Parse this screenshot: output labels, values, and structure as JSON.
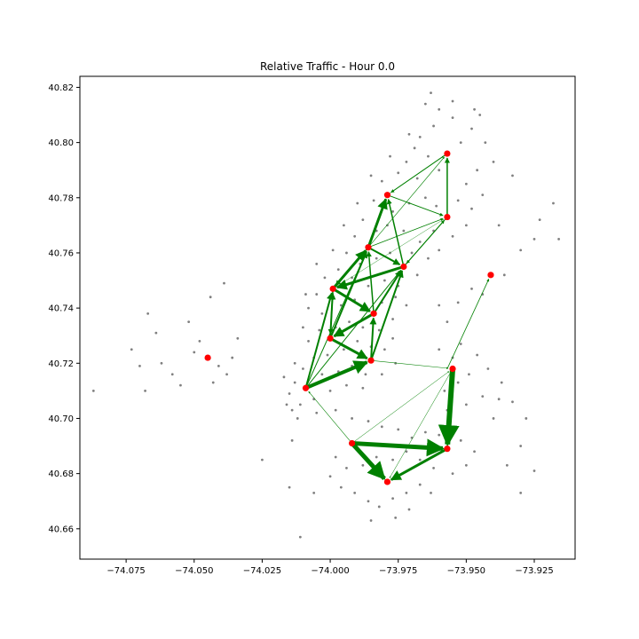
{
  "chart_data": {
    "type": "scatter",
    "title": "Relative Traffic - Hour 0.0",
    "xlabel": "",
    "ylabel": "",
    "xlim": [
      -74.092,
      -73.91
    ],
    "ylim": [
      40.649,
      40.824
    ],
    "grid": false,
    "x_ticks": [
      -74.075,
      -74.05,
      -74.025,
      -74.0,
      -73.975,
      -73.95,
      -73.925
    ],
    "x_tick_labels": [
      "−74.075",
      "−74.050",
      "−74.025",
      "−74.000",
      "−73.975",
      "−73.950",
      "−73.925"
    ],
    "y_ticks": [
      40.66,
      40.68,
      40.7,
      40.72,
      40.74,
      40.76,
      40.78,
      40.8,
      40.82
    ],
    "y_tick_labels": [
      "40.66",
      "40.68",
      "40.70",
      "40.72",
      "40.74",
      "40.76",
      "40.78",
      "40.80",
      "40.82"
    ],
    "colors": {
      "stations": "#808080",
      "hubs": "#ff0000",
      "flows": "#008000"
    },
    "hubs": [
      {
        "x": -73.957,
        "y": 40.796
      },
      {
        "x": -73.979,
        "y": 40.781
      },
      {
        "x": -73.957,
        "y": 40.773
      },
      {
        "x": -73.986,
        "y": 40.762
      },
      {
        "x": -73.973,
        "y": 40.755
      },
      {
        "x": -73.999,
        "y": 40.747
      },
      {
        "x": -73.984,
        "y": 40.738
      },
      {
        "x": -74.0,
        "y": 40.729
      },
      {
        "x": -73.985,
        "y": 40.721
      },
      {
        "x": -74.009,
        "y": 40.711
      },
      {
        "x": -73.955,
        "y": 40.718
      },
      {
        "x": -73.941,
        "y": 40.752
      },
      {
        "x": -74.045,
        "y": 40.722
      },
      {
        "x": -73.992,
        "y": 40.691
      },
      {
        "x": -73.957,
        "y": 40.689
      },
      {
        "x": -73.979,
        "y": 40.677
      }
    ],
    "flows": [
      {
        "from": [
          -73.992,
          40.691
        ],
        "to": [
          -73.957,
          40.689
        ],
        "weight": 5
      },
      {
        "from": [
          -73.955,
          40.718
        ],
        "to": [
          -73.957,
          40.689
        ],
        "weight": 6
      },
      {
        "from": [
          -73.992,
          40.691
        ],
        "to": [
          -73.979,
          40.677
        ],
        "weight": 5
      },
      {
        "from": [
          -73.957,
          40.689
        ],
        "to": [
          -73.979,
          40.677
        ],
        "weight": 3
      },
      {
        "from": [
          -74.009,
          40.711
        ],
        "to": [
          -73.985,
          40.721
        ],
        "weight": 4
      },
      {
        "from": [
          -74.0,
          40.729
        ],
        "to": [
          -73.985,
          40.721
        ],
        "weight": 3
      },
      {
        "from": [
          -73.999,
          40.747
        ],
        "to": [
          -73.984,
          40.738
        ],
        "weight": 3
      },
      {
        "from": [
          -73.973,
          40.755
        ],
        "to": [
          -73.999,
          40.747
        ],
        "weight": 3
      },
      {
        "from": [
          -73.999,
          40.747
        ],
        "to": [
          -73.986,
          40.762
        ],
        "weight": 3
      },
      {
        "from": [
          -73.986,
          40.762
        ],
        "to": [
          -73.979,
          40.781
        ],
        "weight": 3
      },
      {
        "from": [
          -73.984,
          40.738
        ],
        "to": [
          -74.0,
          40.729
        ],
        "weight": 3
      },
      {
        "from": [
          -74.009,
          40.711
        ],
        "to": [
          -73.999,
          40.747
        ],
        "weight": 2
      },
      {
        "from": [
          -74.0,
          40.729
        ],
        "to": [
          -73.999,
          40.747
        ],
        "weight": 2
      },
      {
        "from": [
          -73.985,
          40.721
        ],
        "to": [
          -73.984,
          40.738
        ],
        "weight": 2
      },
      {
        "from": [
          -73.985,
          40.721
        ],
        "to": [
          -73.973,
          40.755
        ],
        "weight": 2
      },
      {
        "from": [
          -73.984,
          40.738
        ],
        "to": [
          -73.973,
          40.755
        ],
        "weight": 2
      },
      {
        "from": [
          -74.0,
          40.729
        ],
        "to": [
          -73.986,
          40.762
        ],
        "weight": 2
      },
      {
        "from": [
          -73.986,
          40.762
        ],
        "to": [
          -73.973,
          40.755
        ],
        "weight": 2
      },
      {
        "from": [
          -73.973,
          40.755
        ],
        "to": [
          -73.979,
          40.781
        ],
        "weight": 1.5
      },
      {
        "from": [
          -73.986,
          40.762
        ],
        "to": [
          -73.999,
          40.747
        ],
        "weight": 1.5
      },
      {
        "from": [
          -73.957,
          40.773
        ],
        "to": [
          -73.957,
          40.796
        ],
        "weight": 1.5
      },
      {
        "from": [
          -73.979,
          40.781
        ],
        "to": [
          -73.957,
          40.773
        ],
        "weight": 1
      },
      {
        "from": [
          -73.957,
          40.796
        ],
        "to": [
          -73.979,
          40.781
        ],
        "weight": 1
      },
      {
        "from": [
          -73.957,
          40.773
        ],
        "to": [
          -73.973,
          40.755
        ],
        "weight": 1
      },
      {
        "from": [
          -73.973,
          40.755
        ],
        "to": [
          -73.957,
          40.773
        ],
        "weight": 1
      },
      {
        "from": [
          -73.986,
          40.762
        ],
        "to": [
          -73.957,
          40.773
        ],
        "weight": 0.8
      },
      {
        "from": [
          -73.957,
          40.718
        ],
        "to": [
          -73.941,
          40.752
        ],
        "weight": 0.8
      },
      {
        "from": [
          -73.985,
          40.721
        ],
        "to": [
          -73.955,
          40.718
        ],
        "weight": 0.6
      },
      {
        "from": [
          -73.992,
          40.691
        ],
        "to": [
          -74.009,
          40.711
        ],
        "weight": 0.6
      },
      {
        "from": [
          -73.992,
          40.691
        ],
        "to": [
          -73.955,
          40.718
        ],
        "weight": 0.5
      },
      {
        "from": [
          -73.955,
          40.718
        ],
        "to": [
          -73.979,
          40.677
        ],
        "weight": 0.5
      },
      {
        "from": [
          -74.009,
          40.711
        ],
        "to": [
          -73.986,
          40.762
        ],
        "weight": 1
      },
      {
        "from": [
          -74.009,
          40.711
        ],
        "to": [
          -73.973,
          40.755
        ],
        "weight": 1
      },
      {
        "from": [
          -73.984,
          40.738
        ],
        "to": [
          -73.986,
          40.762
        ],
        "weight": 1.5
      },
      {
        "from": [
          -73.999,
          40.747
        ],
        "to": [
          -74.0,
          40.729
        ],
        "weight": 1.5
      },
      {
        "from": [
          -73.986,
          40.762
        ],
        "to": [
          -73.957,
          40.796
        ],
        "weight": 0.6
      },
      {
        "from": [
          -73.979,
          40.781
        ],
        "to": [
          -73.957,
          40.796
        ],
        "weight": 0.5
      },
      {
        "from": [
          -73.999,
          40.747
        ],
        "to": [
          -73.957,
          40.773
        ],
        "weight": 0.4
      }
    ],
    "stations": [
      [
        -74.045,
        40.722
      ],
      [
        -74.048,
        40.728
      ],
      [
        -74.05,
        40.724
      ],
      [
        -74.041,
        40.719
      ],
      [
        -74.038,
        40.716
      ],
      [
        -74.036,
        40.722
      ],
      [
        -74.043,
        40.713
      ],
      [
        -74.034,
        40.729
      ],
      [
        -74.052,
        40.735
      ],
      [
        -74.044,
        40.744
      ],
      [
        -74.039,
        40.749
      ],
      [
        -74.067,
        40.738
      ],
      [
        -74.064,
        40.731
      ],
      [
        -74.062,
        40.72
      ],
      [
        -74.07,
        40.719
      ],
      [
        -74.073,
        40.725
      ],
      [
        -74.055,
        40.712
      ],
      [
        -74.087,
        40.71
      ],
      [
        -74.068,
        40.71
      ],
      [
        -74.058,
        40.716
      ],
      [
        -74.025,
        40.685
      ],
      [
        -74.014,
        40.692
      ],
      [
        -74.015,
        40.675
      ],
      [
        -74.006,
        40.673
      ],
      [
        -74.011,
        40.657
      ],
      [
        -73.965,
        40.814
      ],
      [
        -73.96,
        40.812
      ],
      [
        -73.955,
        40.809
      ],
      [
        -73.948,
        40.805
      ],
      [
        -73.952,
        40.8
      ],
      [
        -73.962,
        40.806
      ],
      [
        -73.967,
        40.802
      ],
      [
        -73.945,
        40.81
      ],
      [
        -73.943,
        40.8
      ],
      [
        -73.94,
        40.793
      ],
      [
        -73.946,
        40.79
      ],
      [
        -73.95,
        40.785
      ],
      [
        -73.96,
        40.79
      ],
      [
        -73.964,
        40.795
      ],
      [
        -73.969,
        40.798
      ],
      [
        -73.972,
        40.793
      ],
      [
        -73.968,
        40.787
      ],
      [
        -73.975,
        40.789
      ],
      [
        -73.981,
        40.786
      ],
      [
        -73.984,
        40.779
      ],
      [
        -73.977,
        40.775
      ],
      [
        -73.971,
        40.778
      ],
      [
        -73.965,
        40.78
      ],
      [
        -73.961,
        40.777
      ],
      [
        -73.953,
        40.779
      ],
      [
        -73.948,
        40.776
      ],
      [
        -73.944,
        40.781
      ],
      [
        -73.95,
        40.77
      ],
      [
        -73.955,
        40.766
      ],
      [
        -73.962,
        40.768
      ],
      [
        -73.967,
        40.764
      ],
      [
        -73.973,
        40.768
      ],
      [
        -73.979,
        40.77
      ],
      [
        -73.983,
        40.768
      ],
      [
        -73.988,
        40.772
      ],
      [
        -73.991,
        40.766
      ],
      [
        -73.994,
        40.76
      ],
      [
        -73.989,
        40.756
      ],
      [
        -73.983,
        40.758
      ],
      [
        -73.978,
        40.76
      ],
      [
        -73.97,
        40.76
      ],
      [
        -73.964,
        40.758
      ],
      [
        -73.96,
        40.761
      ],
      [
        -73.968,
        40.752
      ],
      [
        -73.975,
        40.748
      ],
      [
        -73.98,
        40.75
      ],
      [
        -73.986,
        40.748
      ],
      [
        -73.992,
        40.751
      ],
      [
        -73.997,
        40.754
      ],
      [
        -74.002,
        40.751
      ],
      [
        -74.005,
        40.745
      ],
      [
        -74.008,
        40.74
      ],
      [
        -74.003,
        40.738
      ],
      [
        -73.996,
        40.741
      ],
      [
        -73.991,
        40.743
      ],
      [
        -73.987,
        40.74
      ],
      [
        -73.981,
        40.742
      ],
      [
        -73.976,
        40.744
      ],
      [
        -73.972,
        40.741
      ],
      [
        -73.977,
        40.736
      ],
      [
        -73.982,
        40.732
      ],
      [
        -73.988,
        40.733
      ],
      [
        -73.993,
        40.735
      ],
      [
        -73.998,
        40.733
      ],
      [
        -74.004,
        40.732
      ],
      [
        -74.008,
        40.728
      ],
      [
        -74.006,
        40.722
      ],
      [
        -74.001,
        40.723
      ],
      [
        -73.995,
        40.725
      ],
      [
        -73.99,
        40.728
      ],
      [
        -73.985,
        40.726
      ],
      [
        -73.98,
        40.725
      ],
      [
        -73.977,
        40.729
      ],
      [
        -73.976,
        40.72
      ],
      [
        -73.981,
        40.716
      ],
      [
        -73.987,
        40.716
      ],
      [
        -73.992,
        40.719
      ],
      [
        -73.997,
        40.717
      ],
      [
        -74.003,
        40.716
      ],
      [
        -74.01,
        40.718
      ],
      [
        -74.013,
        40.713
      ],
      [
        -74.015,
        40.709
      ],
      [
        -74.011,
        40.705
      ],
      [
        -74.006,
        40.707
      ],
      [
        -74.0,
        40.71
      ],
      [
        -73.994,
        40.712
      ],
      [
        -73.988,
        40.711
      ],
      [
        -74.014,
        40.703
      ],
      [
        -74.012,
        40.7
      ],
      [
        -74.005,
        40.702
      ],
      [
        -73.998,
        40.703
      ],
      [
        -73.992,
        40.7
      ],
      [
        -73.986,
        40.699
      ],
      [
        -73.981,
        40.697
      ],
      [
        -73.975,
        40.696
      ],
      [
        -73.97,
        40.693
      ],
      [
        -73.965,
        40.695
      ],
      [
        -73.96,
        40.694
      ],
      [
        -73.952,
        40.692
      ],
      [
        -73.947,
        40.688
      ],
      [
        -73.95,
        40.683
      ],
      [
        -73.955,
        40.68
      ],
      [
        -73.962,
        40.682
      ],
      [
        -73.967,
        40.685
      ],
      [
        -73.972,
        40.688
      ],
      [
        -73.977,
        40.685
      ],
      [
        -73.983,
        40.686
      ],
      [
        -73.988,
        40.683
      ],
      [
        -73.994,
        40.682
      ],
      [
        -73.998,
        40.686
      ],
      [
        -74.0,
        40.679
      ],
      [
        -73.996,
        40.675
      ],
      [
        -73.991,
        40.673
      ],
      [
        -73.986,
        40.67
      ],
      [
        -73.982,
        40.668
      ],
      [
        -73.977,
        40.671
      ],
      [
        -73.972,
        40.673
      ],
      [
        -73.967,
        40.676
      ],
      [
        -73.963,
        40.673
      ],
      [
        -73.985,
        40.663
      ],
      [
        -73.976,
        40.664
      ],
      [
        -73.971,
        40.667
      ],
      [
        -73.958,
        40.71
      ],
      [
        -73.953,
        40.713
      ],
      [
        -73.949,
        40.716
      ],
      [
        -73.955,
        40.722
      ],
      [
        -73.96,
        40.725
      ],
      [
        -73.952,
        40.727
      ],
      [
        -73.946,
        40.723
      ],
      [
        -73.942,
        40.718
      ],
      [
        -73.944,
        40.708
      ],
      [
        -73.95,
        40.705
      ],
      [
        -73.957,
        40.703
      ],
      [
        -73.94,
        40.7
      ],
      [
        -73.938,
        40.707
      ],
      [
        -73.937,
        40.713
      ],
      [
        -73.933,
        40.706
      ],
      [
        -73.928,
        40.7
      ],
      [
        -73.93,
        40.69
      ],
      [
        -73.935,
        40.683
      ],
      [
        -73.925,
        40.681
      ],
      [
        -73.93,
        40.673
      ],
      [
        -73.96,
        40.741
      ],
      [
        -73.957,
        40.735
      ],
      [
        -73.953,
        40.742
      ],
      [
        -73.948,
        40.747
      ],
      [
        -73.944,
        40.745
      ],
      [
        -73.936,
        40.752
      ],
      [
        -73.93,
        40.761
      ],
      [
        -73.925,
        40.765
      ],
      [
        -73.923,
        40.772
      ],
      [
        -73.918,
        40.778
      ],
      [
        -73.916,
        40.765
      ],
      [
        -73.933,
        40.788
      ],
      [
        -73.938,
        40.77
      ],
      [
        -74.017,
        40.715
      ],
      [
        -74.016,
        40.705
      ],
      [
        -74.013,
        40.72
      ],
      [
        -74.01,
        40.733
      ],
      [
        -74.009,
        40.745
      ],
      [
        -74.005,
        40.756
      ],
      [
        -73.999,
        40.761
      ],
      [
        -73.995,
        40.77
      ],
      [
        -73.99,
        40.778
      ],
      [
        -73.985,
        40.788
      ],
      [
        -73.978,
        40.795
      ],
      [
        -73.971,
        40.803
      ],
      [
        -73.963,
        40.818
      ],
      [
        -73.955,
        40.815
      ],
      [
        -73.947,
        40.812
      ]
    ]
  }
}
